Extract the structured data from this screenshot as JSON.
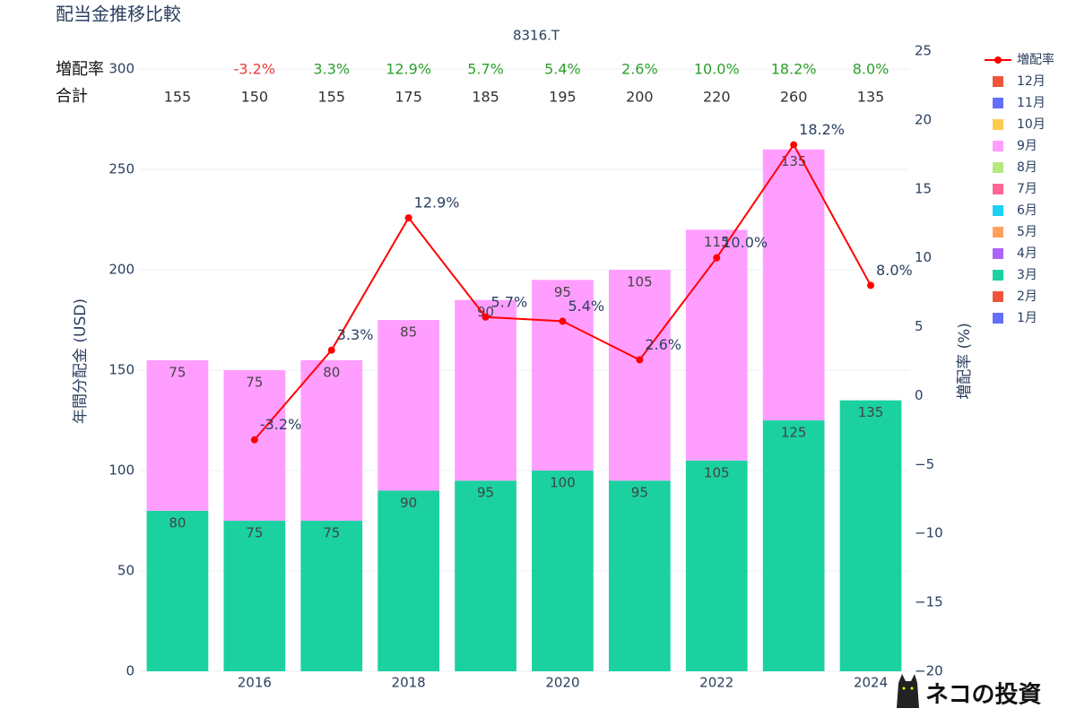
{
  "chart_data": {
    "type": "bar",
    "title": "配当金推移比較",
    "subtitle": "8316.T",
    "y_label": "年間分配金 (USD)",
    "y2_label": "増配率 (%)",
    "x": [
      2015,
      2016,
      2017,
      2018,
      2019,
      2020,
      2021,
      2022,
      2023,
      2024
    ],
    "xlim": [
      2014.5,
      2024.5
    ],
    "xticks": [
      2016,
      2018,
      2020,
      2022,
      2024
    ],
    "ylim": [
      0,
      309
    ],
    "yticks": [
      0,
      50,
      100,
      150,
      200,
      250,
      300
    ],
    "y2lim": [
      -20,
      25
    ],
    "y2ticks": [
      {
        "value": -20,
        "label": "−20"
      },
      {
        "value": -15,
        "label": "−15"
      },
      {
        "value": -10,
        "label": "−10"
      },
      {
        "value": -5,
        "label": "−5"
      },
      0,
      5,
      10,
      15,
      20,
      25
    ],
    "grid": true,
    "barmode": "stack",
    "legend": "right",
    "series": [
      {
        "name": "1月",
        "color": "#636EFA",
        "values": [
          null,
          null,
          null,
          null,
          null,
          null,
          null,
          null,
          null,
          null
        ]
      },
      {
        "name": "2月",
        "color": "#EF553B",
        "values": [
          null,
          null,
          null,
          null,
          null,
          null,
          null,
          null,
          null,
          null
        ]
      },
      {
        "name": "3月",
        "color": "#1BD1A0",
        "values": [
          80,
          75,
          75,
          90,
          95,
          100,
          95,
          105,
          125,
          135
        ]
      },
      {
        "name": "4月",
        "color": "#AB63FA",
        "values": [
          null,
          null,
          null,
          null,
          null,
          null,
          null,
          null,
          null,
          null
        ]
      },
      {
        "name": "5月",
        "color": "#FFA15A",
        "values": [
          null,
          null,
          null,
          null,
          null,
          null,
          null,
          null,
          null,
          null
        ]
      },
      {
        "name": "6月",
        "color": "#19D3F3",
        "values": [
          null,
          null,
          null,
          null,
          null,
          null,
          null,
          null,
          null,
          null
        ]
      },
      {
        "name": "7月",
        "color": "#FF6692",
        "values": [
          null,
          null,
          null,
          null,
          null,
          null,
          null,
          null,
          null,
          null
        ]
      },
      {
        "name": "8月",
        "color": "#B6E880",
        "values": [
          null,
          null,
          null,
          null,
          null,
          null,
          null,
          null,
          null,
          null
        ]
      },
      {
        "name": "9月",
        "color": "#FF9EFF",
        "values": [
          75,
          75,
          80,
          85,
          90,
          95,
          105,
          115,
          135,
          null
        ]
      },
      {
        "name": "10月",
        "color": "#FECB52",
        "values": [
          null,
          null,
          null,
          null,
          null,
          null,
          null,
          null,
          null,
          null
        ]
      },
      {
        "name": "11月",
        "color": "#636EFA",
        "values": [
          null,
          null,
          null,
          null,
          null,
          null,
          null,
          null,
          null,
          null
        ]
      },
      {
        "name": "12月",
        "color": "#EF553B",
        "values": [
          null,
          null,
          null,
          null,
          null,
          null,
          null,
          null,
          null,
          null
        ]
      },
      {
        "name": "増配率",
        "color": "#FF0000",
        "mode": "line",
        "axis": "y2",
        "values": [
          null,
          -3.2,
          3.3,
          12.9,
          5.7,
          5.4,
          2.6,
          10.0,
          18.2,
          8.0
        ],
        "value_labels": [
          null,
          "-3.2%",
          "3.3%",
          "12.9%",
          "5.7%",
          "5.4%",
          "2.6%",
          "10.0%",
          "18.2%",
          "8.0%"
        ]
      }
    ],
    "summary_rows": {
      "growth_label": "増配率",
      "total_label": "合計",
      "totals": [
        155,
        150,
        155,
        175,
        185,
        195,
        200,
        220,
        260,
        135
      ],
      "positive_color": "#2ca02c",
      "negative_color": "#EF3B3B"
    },
    "watermark": "ネコの投資"
  }
}
